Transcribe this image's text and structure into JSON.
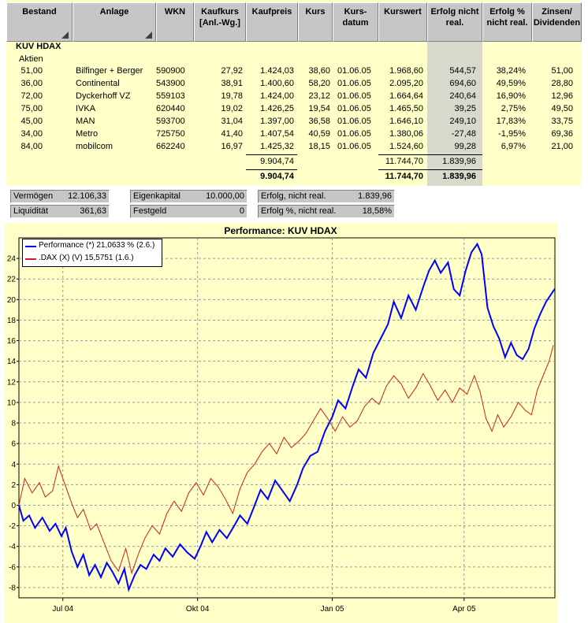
{
  "table": {
    "headers": [
      {
        "label": "Bestand",
        "sort": true
      },
      {
        "label": "Anlage",
        "sort": true
      },
      {
        "label": "WKN"
      },
      {
        "label": "Kaufkurs [Anl.-Wg.]"
      },
      {
        "label": "Kaufpreis"
      },
      {
        "label": "Kurs"
      },
      {
        "label": "Kurs-datum"
      },
      {
        "label": "Kurswert"
      },
      {
        "label": "Erfolg nicht real."
      },
      {
        "label": "Erfolg % nicht real."
      },
      {
        "label": "Zinsen/ Dividenden"
      }
    ],
    "section_title": "KUV HDAX",
    "section_subtitle": "Aktien",
    "rows": [
      {
        "bestand": "51,00",
        "anlage": "Bilfinger + Berger",
        "wkn": "590900",
        "kaufkurs": "27,92",
        "kaufpreis": "1.424,03",
        "kurs": "38,60",
        "datum": "01.06.05",
        "kurswert": "1.968,60",
        "erfolg": "544,57",
        "erfolg_pct": "38,24%",
        "zinsen": "51,00"
      },
      {
        "bestand": "36,00",
        "anlage": "Continental",
        "wkn": "543900",
        "kaufkurs": "38,91",
        "kaufpreis": "1.400,60",
        "kurs": "58,20",
        "datum": "01.06.05",
        "kurswert": "2.095,20",
        "erfolg": "694,60",
        "erfolg_pct": "49,59%",
        "zinsen": "28,80"
      },
      {
        "bestand": "72,00",
        "anlage": "Dyckerhoff VZ",
        "wkn": "559103",
        "kaufkurs": "19,78",
        "kaufpreis": "1.424,00",
        "kurs": "23,12",
        "datum": "01.06.05",
        "kurswert": "1.664,64",
        "erfolg": "240,64",
        "erfolg_pct": "16,90%",
        "zinsen": "12,96"
      },
      {
        "bestand": "75,00",
        "anlage": "IVKA",
        "wkn": "620440",
        "kaufkurs": "19,02",
        "kaufpreis": "1.426,25",
        "kurs": "19,54",
        "datum": "01.06.05",
        "kurswert": "1.465,50",
        "erfolg": "39,25",
        "erfolg_pct": "2,75%",
        "zinsen": "49,50"
      },
      {
        "bestand": "45,00",
        "anlage": "MAN",
        "wkn": "593700",
        "kaufkurs": "31,04",
        "kaufpreis": "1.397,00",
        "kurs": "36,58",
        "datum": "01.06.05",
        "kurswert": "1.646,10",
        "erfolg": "249,10",
        "erfolg_pct": "17,83%",
        "zinsen": "33,75"
      },
      {
        "bestand": "34,00",
        "anlage": "Metro",
        "wkn": "725750",
        "kaufkurs": "41,40",
        "kaufpreis": "1.407,54",
        "kurs": "40,59",
        "datum": "01.06.05",
        "kurswert": "1.380,06",
        "erfolg": "-27,48",
        "erfolg_pct": "-1,95%",
        "zinsen": "69,36"
      },
      {
        "bestand": "84,00",
        "anlage": "mobilcom",
        "wkn": "662240",
        "kaufkurs": "16,97",
        "kaufpreis": "1.425,32",
        "kurs": "18,15",
        "datum": "01.06.05",
        "kurswert": "1.524,60",
        "erfolg": "99,28",
        "erfolg_pct": "6,97%",
        "zinsen": "21,00"
      }
    ],
    "subtotal": {
      "kaufpreis": "9.904,74",
      "kurswert": "11.744,70",
      "erfolg": "1.839,96"
    },
    "total": {
      "kaufpreis": "9.904,74",
      "kurswert": "11.744,70",
      "erfolg": "1.839,96"
    }
  },
  "summary": {
    "vermoegen_label": "Vermögen",
    "vermoegen_value": "12.106,33",
    "liquiditaet_label": "Liquidität",
    "liquiditaet_value": "361,63",
    "eigenkapital_label": "Eigenkapital",
    "eigenkapital_value": "10.000,00",
    "festgeld_label": "Festgeld",
    "festgeld_value": "0",
    "erfolg_label": "Erfolg, nicht real.",
    "erfolg_value": "1.839,96",
    "erfolg_pct_label": "Erfolg %, nicht real.",
    "erfolg_pct_value": "18,58%"
  },
  "colors": {
    "background": "#ffffc8",
    "header": "#c6c6c6",
    "performance": "#0000ff",
    "dax": "#d02020"
  },
  "chart_data": {
    "type": "line",
    "title": "Performance: KUV HDAX",
    "xlabel": "",
    "ylabel": "",
    "x_ticks": [
      "Jul 04",
      "Okt 04",
      "Jan 05",
      "Apr 05"
    ],
    "x_range": [
      "2004-06-01",
      "2005-06-02"
    ],
    "ylim": [
      -9,
      26
    ],
    "y_ticks": [
      -8,
      -6,
      -4,
      -2,
      0,
      2,
      4,
      6,
      8,
      10,
      12,
      14,
      16,
      18,
      20,
      22,
      24
    ],
    "grid": true,
    "legend_position": "top-left",
    "series": [
      {
        "name": "Performance (*) 21,0633 % (2.6.)",
        "color": "#0000ff",
        "points": [
          [
            "2004-06-01",
            0
          ],
          [
            "2004-06-04",
            -1.5
          ],
          [
            "2004-06-08",
            -1.0
          ],
          [
            "2004-06-12",
            -2.2
          ],
          [
            "2004-06-17",
            -1.2
          ],
          [
            "2004-06-22",
            -2.5
          ],
          [
            "2004-06-26",
            -1.8
          ],
          [
            "2004-06-30",
            -3.0
          ],
          [
            "2004-07-03",
            -2.2
          ],
          [
            "2004-07-07",
            -4.5
          ],
          [
            "2004-07-11",
            -6.0
          ],
          [
            "2004-07-15",
            -4.8
          ],
          [
            "2004-07-19",
            -6.8
          ],
          [
            "2004-07-23",
            -5.8
          ],
          [
            "2004-07-27",
            -7.0
          ],
          [
            "2004-07-31",
            -5.6
          ],
          [
            "2004-08-04",
            -6.5
          ],
          [
            "2004-08-08",
            -7.6
          ],
          [
            "2004-08-12",
            -6.2
          ],
          [
            "2004-08-15",
            -8.2
          ],
          [
            "2004-08-19",
            -6.8
          ],
          [
            "2004-08-23",
            -5.8
          ],
          [
            "2004-08-27",
            -6.2
          ],
          [
            "2004-09-01",
            -4.8
          ],
          [
            "2004-09-05",
            -5.4
          ],
          [
            "2004-09-09",
            -4.2
          ],
          [
            "2004-09-14",
            -5.0
          ],
          [
            "2004-09-19",
            -3.8
          ],
          [
            "2004-09-24",
            -4.6
          ],
          [
            "2004-09-29",
            -5.2
          ],
          [
            "2004-10-03",
            -4.0
          ],
          [
            "2004-10-07",
            -2.6
          ],
          [
            "2004-10-11",
            -3.6
          ],
          [
            "2004-10-16",
            -2.4
          ],
          [
            "2004-10-21",
            -3.2
          ],
          [
            "2004-10-26",
            -2.0
          ],
          [
            "2004-10-30",
            -1.0
          ],
          [
            "2004-11-04",
            -1.8
          ],
          [
            "2004-11-09",
            0.0
          ],
          [
            "2004-11-13",
            1.5
          ],
          [
            "2004-11-18",
            0.6
          ],
          [
            "2004-11-23",
            2.4
          ],
          [
            "2004-11-28",
            1.4
          ],
          [
            "2004-12-03",
            0.4
          ],
          [
            "2004-12-08",
            2.0
          ],
          [
            "2004-12-12",
            3.6
          ],
          [
            "2004-12-17",
            4.8
          ],
          [
            "2004-12-22",
            5.2
          ],
          [
            "2004-12-27",
            7.2
          ],
          [
            "2005-01-01",
            8.6
          ],
          [
            "2005-01-05",
            10.2
          ],
          [
            "2005-01-10",
            9.4
          ],
          [
            "2005-01-15",
            11.6
          ],
          [
            "2005-01-19",
            13.2
          ],
          [
            "2005-01-24",
            12.4
          ],
          [
            "2005-01-29",
            14.8
          ],
          [
            "2005-02-03",
            16.2
          ],
          [
            "2005-02-08",
            17.6
          ],
          [
            "2005-02-12",
            19.8
          ],
          [
            "2005-02-17",
            18.2
          ],
          [
            "2005-02-22",
            20.4
          ],
          [
            "2005-02-27",
            19.0
          ],
          [
            "2005-03-04",
            21.2
          ],
          [
            "2005-03-08",
            22.8
          ],
          [
            "2005-03-12",
            23.8
          ],
          [
            "2005-03-16",
            22.6
          ],
          [
            "2005-03-21",
            23.6
          ],
          [
            "2005-03-25",
            21.0
          ],
          [
            "2005-03-29",
            20.4
          ],
          [
            "2005-04-02",
            22.8
          ],
          [
            "2005-04-06",
            24.6
          ],
          [
            "2005-04-10",
            25.4
          ],
          [
            "2005-04-13",
            24.4
          ],
          [
            "2005-04-17",
            19.2
          ],
          [
            "2005-04-21",
            17.4
          ],
          [
            "2005-04-25",
            16.2
          ],
          [
            "2005-04-29",
            14.4
          ],
          [
            "2005-05-03",
            15.8
          ],
          [
            "2005-05-07",
            14.6
          ],
          [
            "2005-05-11",
            14.2
          ],
          [
            "2005-05-15",
            15.2
          ],
          [
            "2005-05-19",
            17.2
          ],
          [
            "2005-05-23",
            18.6
          ],
          [
            "2005-05-27",
            19.8
          ],
          [
            "2005-06-02",
            21.06
          ]
        ]
      },
      {
        "name": ".DAX (X) (V) 15,5751 (1.6.)",
        "color": "#d02020",
        "points": [
          [
            "2004-06-01",
            0
          ],
          [
            "2004-06-05",
            2.6
          ],
          [
            "2004-06-10",
            1.2
          ],
          [
            "2004-06-15",
            2.2
          ],
          [
            "2004-06-19",
            0.8
          ],
          [
            "2004-06-24",
            1.4
          ],
          [
            "2004-06-28",
            3.8
          ],
          [
            "2004-07-02",
            2.2
          ],
          [
            "2004-07-07",
            0.2
          ],
          [
            "2004-07-11",
            -1.2
          ],
          [
            "2004-07-15",
            -0.4
          ],
          [
            "2004-07-20",
            -2.4
          ],
          [
            "2004-07-24",
            -1.8
          ],
          [
            "2004-07-29",
            -3.6
          ],
          [
            "2004-08-03",
            -5.4
          ],
          [
            "2004-08-08",
            -6.4
          ],
          [
            "2004-08-13",
            -4.2
          ],
          [
            "2004-08-17",
            -6.6
          ],
          [
            "2004-08-22",
            -4.6
          ],
          [
            "2004-08-26",
            -3.2
          ],
          [
            "2004-08-31",
            -2.0
          ],
          [
            "2004-09-05",
            -2.8
          ],
          [
            "2004-09-10",
            -0.8
          ],
          [
            "2004-09-15",
            0.4
          ],
          [
            "2004-09-20",
            -0.6
          ],
          [
            "2004-09-25",
            1.2
          ],
          [
            "2004-09-30",
            2.2
          ],
          [
            "2004-10-05",
            1.0
          ],
          [
            "2004-10-10",
            2.6
          ],
          [
            "2004-10-15",
            1.8
          ],
          [
            "2004-10-20",
            0.6
          ],
          [
            "2004-10-25",
            -0.8
          ],
          [
            "2004-10-30",
            1.6
          ],
          [
            "2004-11-04",
            3.2
          ],
          [
            "2004-11-09",
            4.0
          ],
          [
            "2004-11-14",
            5.2
          ],
          [
            "2004-11-19",
            6.0
          ],
          [
            "2004-11-24",
            5.0
          ],
          [
            "2004-11-29",
            6.6
          ],
          [
            "2004-12-04",
            5.6
          ],
          [
            "2004-12-09",
            6.2
          ],
          [
            "2004-12-14",
            7.0
          ],
          [
            "2004-12-19",
            8.2
          ],
          [
            "2004-12-24",
            9.4
          ],
          [
            "2004-12-29",
            8.4
          ],
          [
            "2005-01-03",
            7.2
          ],
          [
            "2005-01-08",
            8.6
          ],
          [
            "2005-01-13",
            7.6
          ],
          [
            "2005-01-18",
            8.2
          ],
          [
            "2005-01-23",
            9.6
          ],
          [
            "2005-01-28",
            10.4
          ],
          [
            "2005-02-02",
            9.8
          ],
          [
            "2005-02-07",
            11.6
          ],
          [
            "2005-02-12",
            12.6
          ],
          [
            "2005-02-17",
            11.8
          ],
          [
            "2005-02-22",
            10.4
          ],
          [
            "2005-02-27",
            11.4
          ],
          [
            "2005-03-04",
            12.8
          ],
          [
            "2005-03-09",
            11.6
          ],
          [
            "2005-03-14",
            10.2
          ],
          [
            "2005-03-19",
            11.2
          ],
          [
            "2005-03-24",
            10.0
          ],
          [
            "2005-03-29",
            11.4
          ],
          [
            "2005-04-03",
            10.8
          ],
          [
            "2005-04-08",
            12.6
          ],
          [
            "2005-04-12",
            11.0
          ],
          [
            "2005-04-16",
            8.4
          ],
          [
            "2005-04-20",
            7.2
          ],
          [
            "2005-04-24",
            8.8
          ],
          [
            "2005-04-28",
            7.6
          ],
          [
            "2005-05-03",
            8.6
          ],
          [
            "2005-05-08",
            10.0
          ],
          [
            "2005-05-13",
            9.2
          ],
          [
            "2005-05-17",
            8.8
          ],
          [
            "2005-05-21",
            11.2
          ],
          [
            "2005-05-25",
            12.6
          ],
          [
            "2005-05-29",
            14.0
          ],
          [
            "2005-06-01",
            15.58
          ]
        ]
      }
    ]
  }
}
